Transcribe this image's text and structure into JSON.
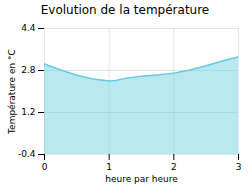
{
  "chart_data": {
    "type": "area",
    "title": "Evolution de la température",
    "xlabel": "heure par heure",
    "ylabel": "Température en °C",
    "x": [
      0,
      0.25,
      0.5,
      0.75,
      1.0,
      1.1,
      1.25,
      1.5,
      1.75,
      2.0,
      2.25,
      2.5,
      2.75,
      3.0
    ],
    "values": [
      3.05,
      2.82,
      2.62,
      2.48,
      2.4,
      2.42,
      2.5,
      2.58,
      2.63,
      2.7,
      2.82,
      2.98,
      3.16,
      3.32
    ],
    "color": "#66ccdd",
    "xlim": [
      0,
      3
    ],
    "ylim": [
      -0.4,
      4.4
    ],
    "xticks": [
      0,
      1,
      2,
      3
    ],
    "yticks": [
      -0.4,
      1.2,
      2.8,
      4.4
    ],
    "grid": true
  }
}
